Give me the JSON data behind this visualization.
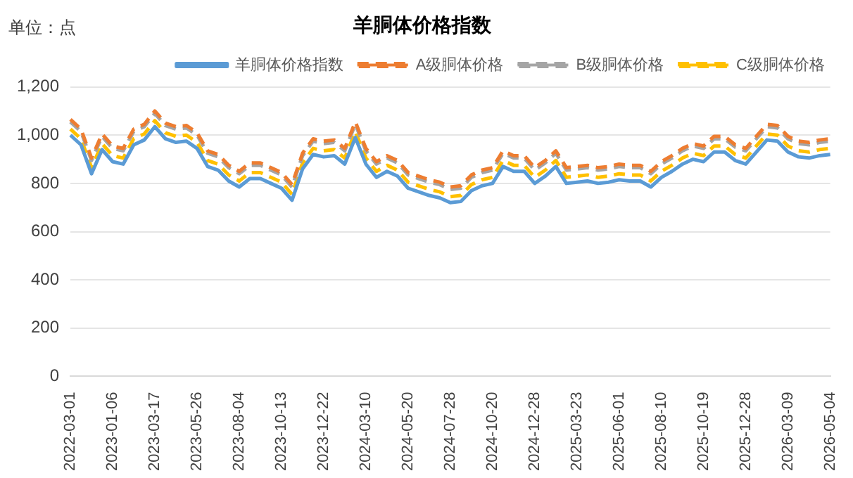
{
  "chart_data": {
    "type": "line",
    "title": "羊胴体价格指数",
    "annotations": [
      "单位：点"
    ],
    "categories": [
      "2022-03-01",
      null,
      null,
      null,
      "2023-01-06",
      null,
      null,
      null,
      "2023-03-17",
      null,
      null,
      null,
      "2023-05-26",
      null,
      null,
      null,
      "2023-08-04",
      null,
      null,
      null,
      "2023-10-13",
      null,
      null,
      null,
      "2023-12-22",
      null,
      null,
      null,
      "2024-03-10",
      null,
      null,
      null,
      "2024-05-20",
      null,
      null,
      null,
      "2024-07-28",
      null,
      null,
      null,
      "2024-10-20",
      null,
      null,
      null,
      "2024-12-28",
      null,
      null,
      null,
      "2025-03-23",
      null,
      null,
      null,
      "2025-06-01",
      null,
      null,
      null,
      "2025-08-10",
      null,
      null,
      null,
      "2025-10-19",
      null,
      null,
      null,
      "2025-12-28",
      null,
      null,
      null,
      "2026-03-09",
      null,
      null,
      null,
      "2026-05-04"
    ],
    "series": [
      {
        "name": "羊胴体价格指数",
        "color": "#5b9bd5",
        "line_style": "solid",
        "values": [
          1000,
          960,
          840,
          940,
          890,
          880,
          960,
          980,
          1035,
          985,
          970,
          975,
          945,
          870,
          855,
          810,
          785,
          820,
          820,
          800,
          780,
          730,
          860,
          920,
          910,
          915,
          880,
          990,
          880,
          825,
          850,
          830,
          780,
          765,
          750,
          740,
          720,
          725,
          770,
          790,
          800,
          870,
          850,
          850,
          800,
          830,
          870,
          800,
          805,
          810,
          800,
          805,
          815,
          810,
          810,
          785,
          825,
          850,
          880,
          900,
          890,
          930,
          930,
          895,
          880,
          930,
          980,
          975,
          930,
          910,
          905,
          915,
          920
        ]
      },
      {
        "name": "A级胴体价格",
        "color": "#ed7d31",
        "line_style": "dashed",
        "values": [
          1065,
          1025,
          905,
          1005,
          955,
          945,
          1025,
          1045,
          1100,
          1050,
          1035,
          1040,
          1010,
          935,
          920,
          875,
          850,
          885,
          885,
          865,
          845,
          795,
          925,
          985,
          975,
          980,
          945,
          1055,
          945,
          890,
          915,
          895,
          845,
          830,
          815,
          805,
          785,
          790,
          835,
          855,
          865,
          935,
          915,
          915,
          865,
          895,
          935,
          865,
          870,
          875,
          865,
          870,
          880,
          875,
          875,
          850,
          890,
          915,
          945,
          965,
          955,
          995,
          995,
          960,
          945,
          995,
          1045,
          1040,
          995,
          975,
          970,
          980,
          985
        ]
      },
      {
        "name": "B级胴体价格",
        "color": "#a5a5a5",
        "line_style": "dashed",
        "values": [
          1055,
          1015,
          895,
          995,
          945,
          935,
          1015,
          1035,
          1090,
          1040,
          1025,
          1030,
          1000,
          925,
          910,
          865,
          840,
          875,
          875,
          855,
          835,
          785,
          915,
          975,
          965,
          970,
          935,
          1045,
          935,
          880,
          905,
          885,
          835,
          820,
          805,
          795,
          775,
          780,
          825,
          845,
          855,
          925,
          905,
          905,
          855,
          885,
          925,
          855,
          860,
          865,
          855,
          860,
          870,
          865,
          865,
          840,
          880,
          905,
          935,
          955,
          945,
          985,
          985,
          950,
          935,
          985,
          1035,
          1030,
          985,
          965,
          960,
          970,
          975
        ]
      },
      {
        "name": "C级胴体价格",
        "color": "#ffc000",
        "line_style": "dashed",
        "values": [
          1025,
          985,
          865,
          965,
          915,
          905,
          985,
          1005,
          1060,
          1010,
          995,
          1000,
          970,
          895,
          880,
          835,
          810,
          845,
          845,
          825,
          805,
          755,
          885,
          945,
          935,
          940,
          905,
          1015,
          905,
          850,
          875,
          855,
          805,
          790,
          775,
          765,
          745,
          750,
          795,
          815,
          825,
          895,
          875,
          875,
          825,
          855,
          895,
          825,
          830,
          835,
          825,
          830,
          840,
          835,
          835,
          810,
          850,
          875,
          905,
          925,
          915,
          955,
          955,
          920,
          905,
          955,
          1005,
          1000,
          955,
          935,
          930,
          940,
          945
        ]
      }
    ],
    "ylim": [
      0,
      1200
    ],
    "yticks": [
      0,
      200,
      400,
      600,
      800,
      {
        "value": 1000,
        "label": "1,000"
      },
      {
        "value": 1200,
        "label": "1,200"
      }
    ],
    "grid": "y",
    "legend": "top",
    "marker": "none"
  }
}
